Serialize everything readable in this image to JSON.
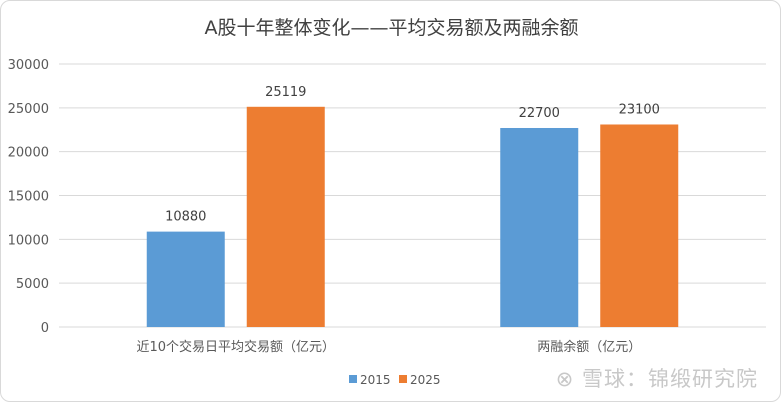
{
  "chart_data": {
    "type": "bar",
    "title": "A股十年整体变化——平均交易额及两融余额",
    "categories": [
      "近10个交易日平均交易额（亿元）",
      "两融余额（亿元）"
    ],
    "series": [
      {
        "name": "2015",
        "color": "#5b9bd5",
        "values": [
          10880,
          22700
        ]
      },
      {
        "name": "2025",
        "color": "#ed7d31",
        "values": [
          25119,
          23100
        ]
      }
    ],
    "yticks": [
      0,
      5000,
      10000,
      15000,
      20000,
      25000,
      30000
    ],
    "ylim": [
      0,
      30000
    ],
    "grid": true,
    "legend": "bottom",
    "xlabel": "",
    "ylabel": ""
  },
  "watermark": "雪球：锦缎研究院"
}
